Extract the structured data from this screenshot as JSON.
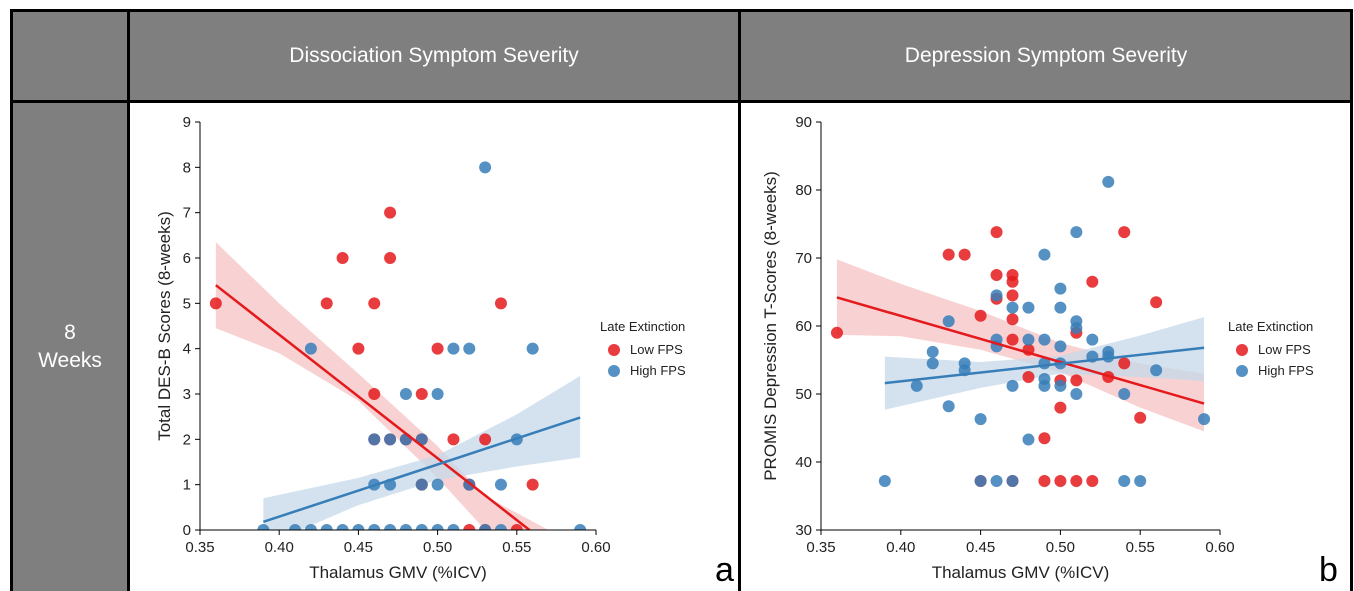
{
  "table": {
    "columns": [
      "Dissociation Symptom Severity",
      "Depression Symptom Severity"
    ],
    "row_label_line1": "8",
    "row_label_line2": "Weeks"
  },
  "colors": {
    "low": "#e41a1c",
    "high": "#377eb8",
    "low_band": "#f6c3c4",
    "high_band": "#c6d8ea",
    "header": "#7f7f7f"
  },
  "chart_data": [
    {
      "type": "scatter",
      "panel_label": "a",
      "xlabel": "Thalamus GMV (%ICV)",
      "ylabel": "Total DES-B Scores (8-weeks)",
      "xlim": [
        0.35,
        0.6
      ],
      "ylim": [
        0,
        9
      ],
      "xticks": [
        "0.35",
        "0.40",
        "0.45",
        "0.50",
        "0.55",
        "0.60"
      ],
      "yticks": [
        "0",
        "1",
        "2",
        "3",
        "4",
        "5",
        "6",
        "7",
        "8",
        "9"
      ],
      "legend_title": "Late Extinction",
      "legend_position": "right",
      "series": [
        {
          "name": "Low FPS",
          "color": "#e41a1c",
          "points": [
            [
              0.36,
              5
            ],
            [
              0.43,
              5
            ],
            [
              0.44,
              6
            ],
            [
              0.45,
              4
            ],
            [
              0.46,
              5
            ],
            [
              0.46,
              3
            ],
            [
              0.47,
              7
            ],
            [
              0.47,
              6
            ],
            [
              0.46,
              2
            ],
            [
              0.47,
              2
            ],
            [
              0.48,
              2
            ],
            [
              0.49,
              3
            ],
            [
              0.49,
              2
            ],
            [
              0.49,
              1
            ],
            [
              0.5,
              4
            ],
            [
              0.51,
              2
            ],
            [
              0.52,
              1
            ],
            [
              0.53,
              2
            ],
            [
              0.54,
              5
            ],
            [
              0.56,
              1
            ],
            [
              0.52,
              0
            ],
            [
              0.55,
              0
            ],
            [
              0.53,
              0
            ]
          ],
          "trend": [
            [
              0.36,
              5.4
            ],
            [
              0.558,
              0
            ]
          ],
          "ci_upper": [
            [
              0.36,
              6.35
            ],
            [
              0.4,
              5.0
            ],
            [
              0.45,
              3.45
            ],
            [
              0.5,
              1.85
            ],
            [
              0.53,
              0.75
            ],
            [
              0.57,
              0
            ]
          ],
          "ci_lower": [
            [
              0.36,
              4.45
            ],
            [
              0.4,
              3.9
            ],
            [
              0.45,
              2.85
            ],
            [
              0.5,
              1.15
            ],
            [
              0.53,
              0.0
            ],
            [
              0.545,
              0
            ]
          ]
        },
        {
          "name": "High FPS",
          "color": "#377eb8",
          "points": [
            [
              0.39,
              0
            ],
            [
              0.41,
              0
            ],
            [
              0.42,
              0
            ],
            [
              0.43,
              0
            ],
            [
              0.44,
              0
            ],
            [
              0.45,
              0
            ],
            [
              0.46,
              0
            ],
            [
              0.47,
              0
            ],
            [
              0.48,
              0
            ],
            [
              0.49,
              0
            ],
            [
              0.5,
              0
            ],
            [
              0.51,
              0
            ],
            [
              0.53,
              0
            ],
            [
              0.54,
              0
            ],
            [
              0.59,
              0
            ],
            [
              0.42,
              4
            ],
            [
              0.46,
              2
            ],
            [
              0.47,
              2
            ],
            [
              0.48,
              2
            ],
            [
              0.49,
              2
            ],
            [
              0.46,
              1
            ],
            [
              0.47,
              1
            ],
            [
              0.49,
              1
            ],
            [
              0.5,
              1
            ],
            [
              0.48,
              3
            ],
            [
              0.5,
              3
            ],
            [
              0.51,
              4
            ],
            [
              0.52,
              4
            ],
            [
              0.53,
              8
            ],
            [
              0.52,
              1
            ],
            [
              0.54,
              1
            ],
            [
              0.55,
              2
            ],
            [
              0.56,
              4
            ]
          ],
          "trend": [
            [
              0.39,
              0.18
            ],
            [
              0.59,
              2.48
            ]
          ],
          "ci_upper": [
            [
              0.39,
              0.7
            ],
            [
              0.45,
              1.15
            ],
            [
              0.5,
              1.65
            ],
            [
              0.55,
              2.55
            ],
            [
              0.59,
              3.4
            ]
          ],
          "ci_lower": [
            [
              0.39,
              -0.35
            ],
            [
              0.45,
              0.55
            ],
            [
              0.5,
              1.1
            ],
            [
              0.55,
              1.4
            ],
            [
              0.59,
              1.6
            ]
          ]
        }
      ]
    },
    {
      "type": "scatter",
      "panel_label": "b",
      "xlabel": "Thalamus GMV (%ICV)",
      "ylabel": "PROMIS Depression T-Scores (8-weeks)",
      "xlim": [
        0.35,
        0.6
      ],
      "ylim": [
        30,
        90
      ],
      "xticks": [
        "0.35",
        "0.40",
        "0.45",
        "0.50",
        "0.55",
        "0.60"
      ],
      "yticks": [
        "30",
        "40",
        "50",
        "60",
        "70",
        "80",
        "90"
      ],
      "legend_title": "Late Extinction",
      "legend_position": "right",
      "series": [
        {
          "name": "Low FPS",
          "color": "#e41a1c",
          "points": [
            [
              0.36,
              59
            ],
            [
              0.43,
              70.5
            ],
            [
              0.44,
              70.5
            ],
            [
              0.45,
              61.5
            ],
            [
              0.46,
              73.8
            ],
            [
              0.46,
              67.5
            ],
            [
              0.46,
              64
            ],
            [
              0.47,
              67.5
            ],
            [
              0.47,
              66.5
            ],
            [
              0.47,
              64.5
            ],
            [
              0.47,
              61
            ],
            [
              0.47,
              58
            ],
            [
              0.48,
              56.5
            ],
            [
              0.48,
              52.5
            ],
            [
              0.49,
              43.5
            ],
            [
              0.49,
              37.2
            ],
            [
              0.5,
              52
            ],
            [
              0.5,
              48
            ],
            [
              0.5,
              37.2
            ],
            [
              0.51,
              59
            ],
            [
              0.51,
              37.2
            ],
            [
              0.51,
              52
            ],
            [
              0.52,
              66.5
            ],
            [
              0.52,
              37.2
            ],
            [
              0.53,
              52.5
            ],
            [
              0.54,
              73.8
            ],
            [
              0.54,
              54.5
            ],
            [
              0.55,
              46.5
            ],
            [
              0.56,
              63.5
            ],
            [
              0.45,
              37.2
            ],
            [
              0.47,
              37.2
            ]
          ],
          "trend": [
            [
              0.36,
              64.2
            ],
            [
              0.59,
              48.6
            ]
          ],
          "ci_upper": [
            [
              0.36,
              69.8
            ],
            [
              0.4,
              66.2
            ],
            [
              0.45,
              62.2
            ],
            [
              0.5,
              57.5
            ],
            [
              0.55,
              54.5
            ],
            [
              0.59,
              53.0
            ]
          ],
          "ci_lower": [
            [
              0.36,
              58.7
            ],
            [
              0.4,
              58.5
            ],
            [
              0.45,
              56.5
            ],
            [
              0.5,
              53.2
            ],
            [
              0.55,
              48.0
            ],
            [
              0.59,
              44.5
            ]
          ]
        },
        {
          "name": "High FPS",
          "color": "#377eb8",
          "points": [
            [
              0.39,
              37.2
            ],
            [
              0.41,
              51.2
            ],
            [
              0.42,
              54.5
            ],
            [
              0.42,
              56.2
            ],
            [
              0.43,
              60.7
            ],
            [
              0.43,
              48.2
            ],
            [
              0.44,
              54.5
            ],
            [
              0.44,
              53.5
            ],
            [
              0.45,
              46.3
            ],
            [
              0.45,
              37.2
            ],
            [
              0.46,
              64.5
            ],
            [
              0.46,
              58
            ],
            [
              0.46,
              57
            ],
            [
              0.46,
              37.2
            ],
            [
              0.47,
              62.7
            ],
            [
              0.47,
              51.2
            ],
            [
              0.47,
              37.2
            ],
            [
              0.48,
              62.7
            ],
            [
              0.48,
              58
            ],
            [
              0.48,
              43.3
            ],
            [
              0.49,
              70.5
            ],
            [
              0.49,
              58
            ],
            [
              0.49,
              54.5
            ],
            [
              0.49,
              52.2
            ],
            [
              0.49,
              51.2
            ],
            [
              0.5,
              65.5
            ],
            [
              0.5,
              62.7
            ],
            [
              0.5,
              57
            ],
            [
              0.5,
              54.5
            ],
            [
              0.5,
              51.2
            ],
            [
              0.51,
              73.8
            ],
            [
              0.51,
              60.7
            ],
            [
              0.51,
              59.7
            ],
            [
              0.51,
              50
            ],
            [
              0.52,
              58
            ],
            [
              0.52,
              55.5
            ],
            [
              0.53,
              81.2
            ],
            [
              0.53,
              56.2
            ],
            [
              0.53,
              55.5
            ],
            [
              0.54,
              50
            ],
            [
              0.54,
              37.2
            ],
            [
              0.55,
              37.2
            ],
            [
              0.56,
              53.5
            ],
            [
              0.59,
              46.3
            ]
          ],
          "trend": [
            [
              0.39,
              51.6
            ],
            [
              0.59,
              56.8
            ]
          ],
          "ci_upper": [
            [
              0.39,
              55.5
            ],
            [
              0.45,
              54.7
            ],
            [
              0.5,
              55.6
            ],
            [
              0.55,
              58.6
            ],
            [
              0.59,
              61.3
            ]
          ],
          "ci_lower": [
            [
              0.39,
              47.7
            ],
            [
              0.45,
              50.9
            ],
            [
              0.5,
              53.0
            ],
            [
              0.55,
              52.5
            ],
            [
              0.59,
              51.9
            ]
          ]
        }
      ]
    }
  ]
}
